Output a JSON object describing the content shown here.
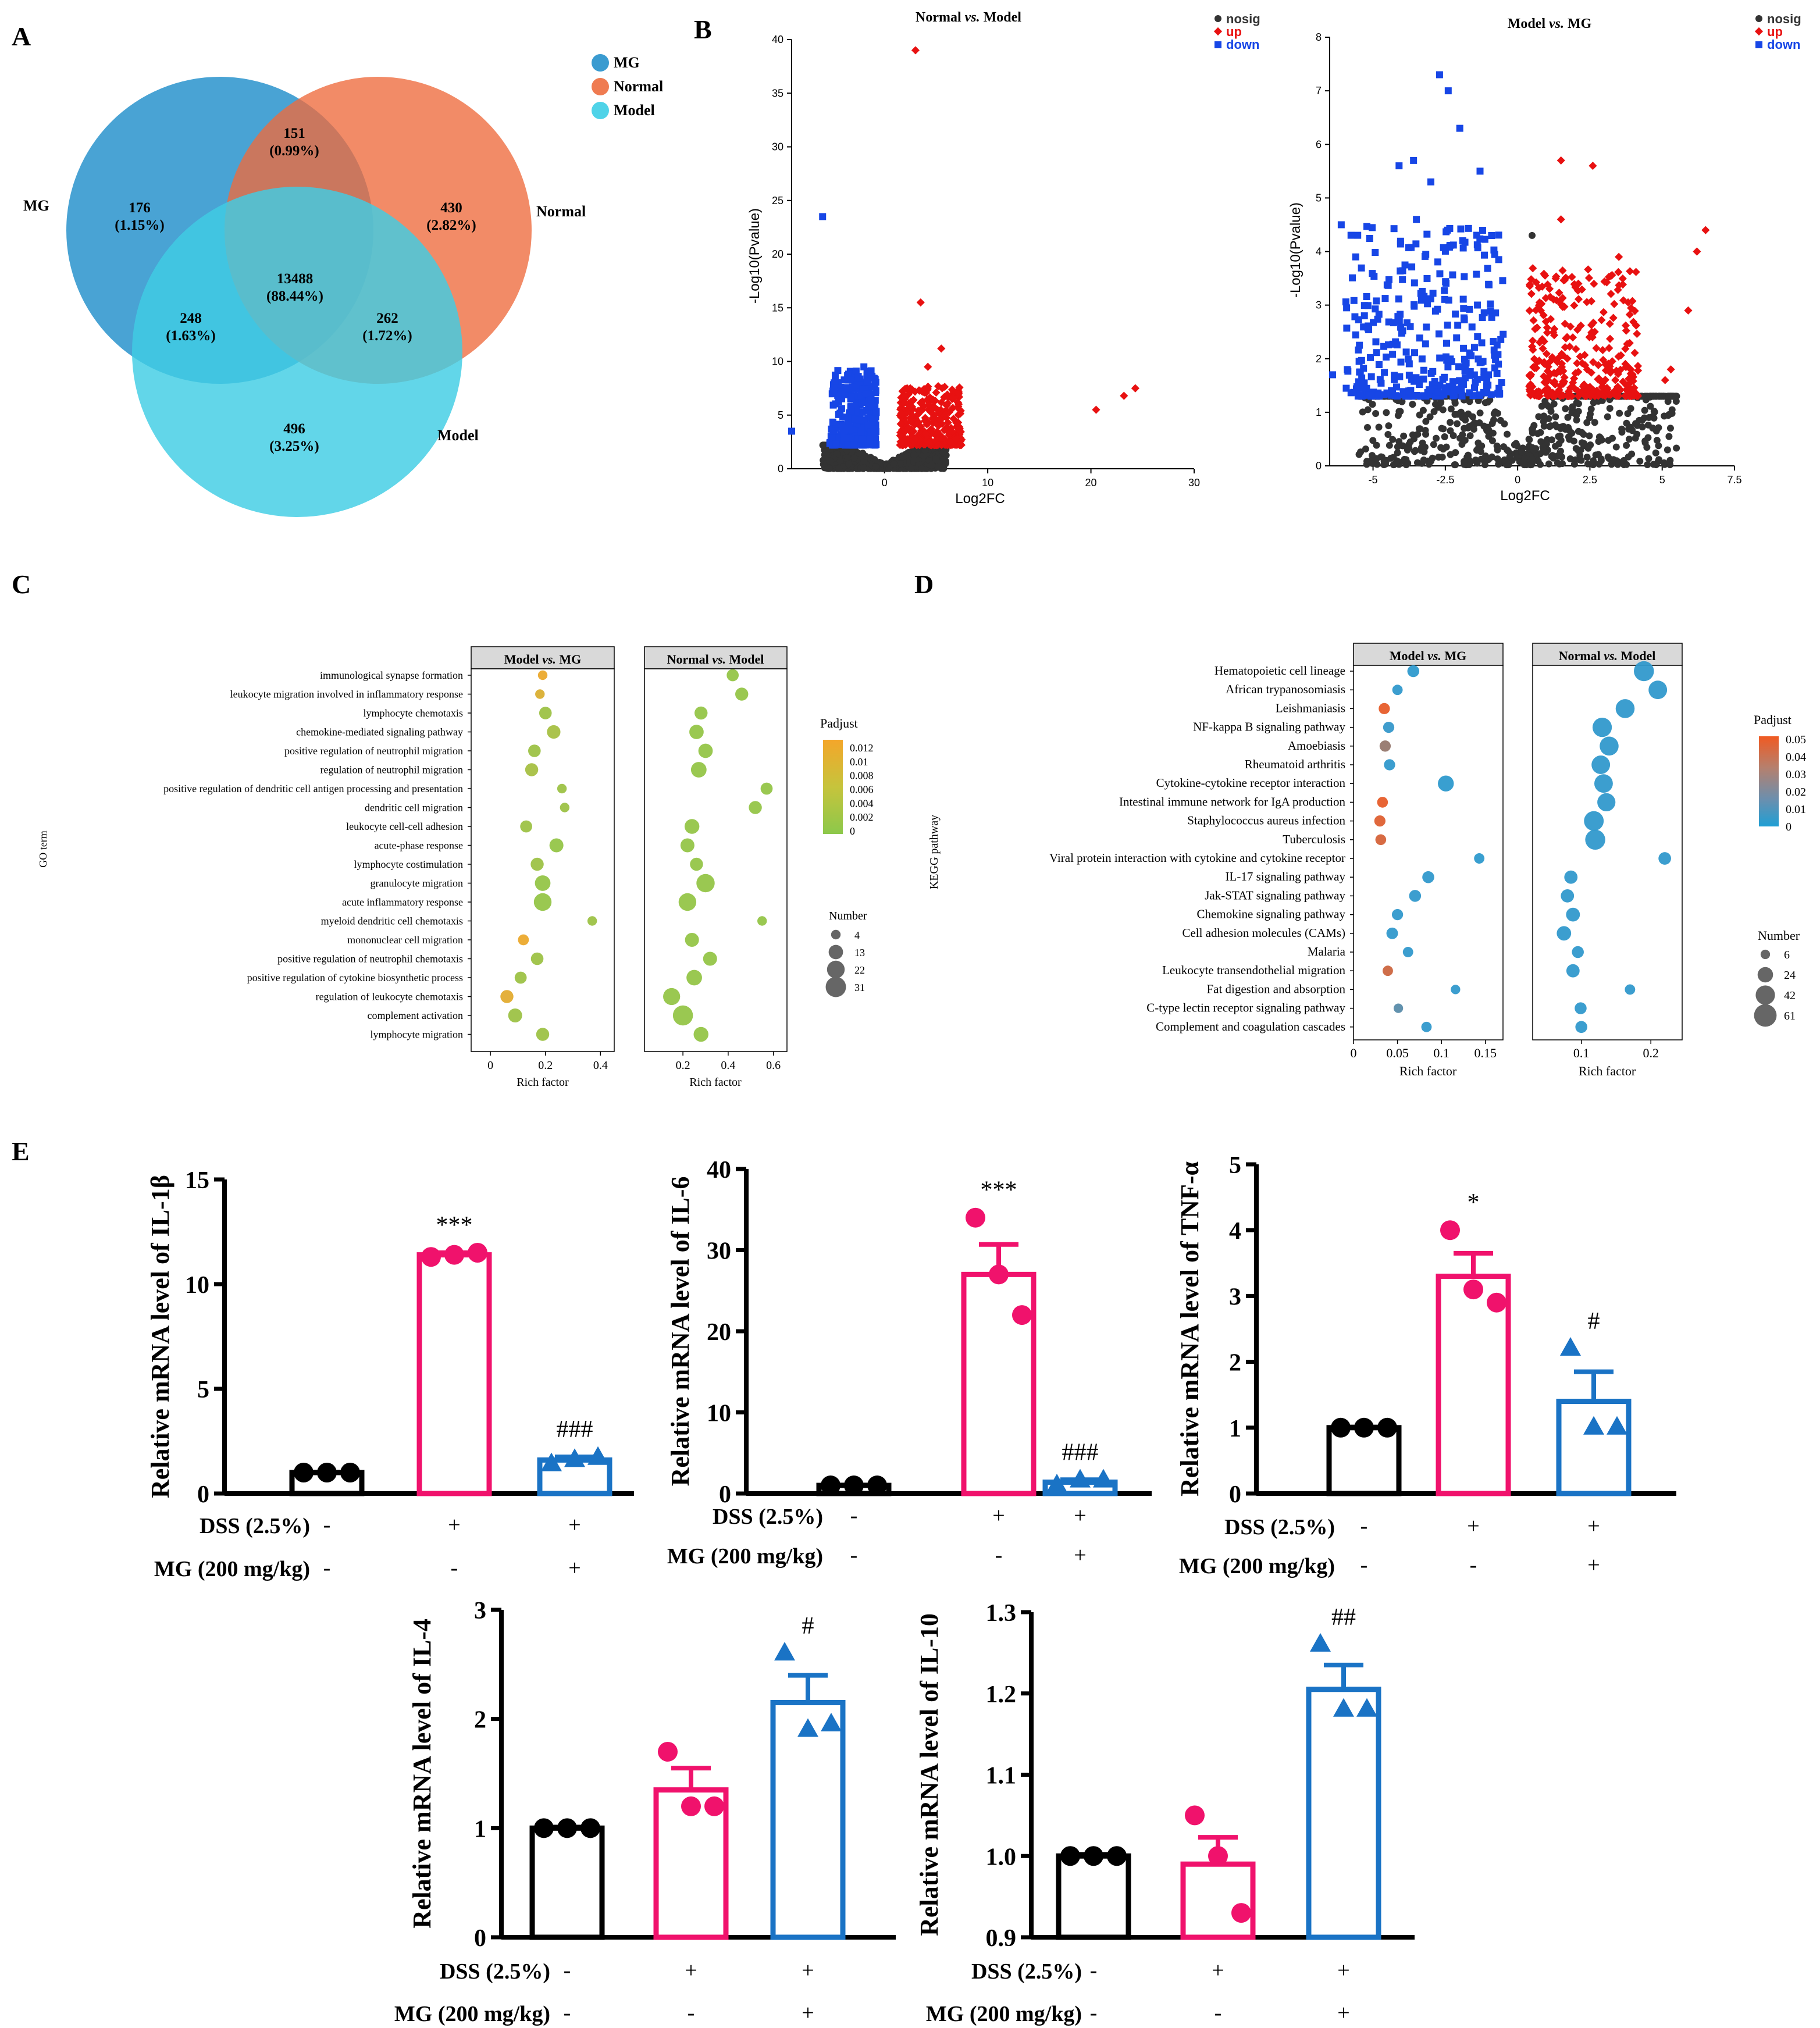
{
  "panels": {
    "A": "A",
    "B": "B",
    "C": "C",
    "D": "D",
    "E": "E"
  },
  "colors": {
    "mg": "#3a9bd0",
    "normal": "#ef7b51",
    "model": "#4fd3e8",
    "black": "#000000",
    "pink": "#f0126c",
    "blue": "#1a73c5",
    "nosig": "#333333",
    "up": "#e81111",
    "down": "#1746e6"
  },
  "chart_data": [
    {
      "id": "A",
      "type": "venn",
      "legend": [
        "MG",
        "Normal",
        "Model"
      ],
      "set_labels": {
        "mg": "MG",
        "normal": "Normal",
        "model": "Model"
      },
      "regions": [
        {
          "sets": [
            "MG"
          ],
          "count": "176",
          "pct": "(1.15%)"
        },
        {
          "sets": [
            "Normal"
          ],
          "count": "430",
          "pct": "(2.82%)"
        },
        {
          "sets": [
            "Model"
          ],
          "count": "496",
          "pct": "(3.25%)"
        },
        {
          "sets": [
            "MG",
            "Normal"
          ],
          "count": "151",
          "pct": "(0.99%)"
        },
        {
          "sets": [
            "MG",
            "Model"
          ],
          "count": "248",
          "pct": "(1.63%)"
        },
        {
          "sets": [
            "Normal",
            "Model"
          ],
          "count": "262",
          "pct": "(1.72%)"
        },
        {
          "sets": [
            "MG",
            "Normal",
            "Model"
          ],
          "count": "13488",
          "pct": "(88.44%)"
        }
      ]
    },
    {
      "id": "B1",
      "type": "scatter",
      "title": "Normal vs. Model",
      "title_a": "Normal ",
      "title_vs": "vs.",
      "title_b": " Model",
      "xlabel": "Log2FC",
      "ylabel": "-Log10(Pvalue)",
      "xlim": [
        -9,
        30
      ],
      "ylim": [
        0,
        40
      ],
      "xticks": [
        "0",
        "10",
        "20",
        "30"
      ],
      "yticks": [
        "0",
        "5",
        "10",
        "15",
        "20",
        "25",
        "30",
        "35",
        "40"
      ],
      "legend": [
        "nosig",
        "up",
        "down"
      ],
      "highlights": {
        "up": [
          [
            3,
            39
          ],
          [
            3.5,
            15.5
          ],
          [
            5.5,
            11.2
          ],
          [
            20.5,
            5.5
          ],
          [
            23.2,
            6.8
          ],
          [
            24.3,
            7.5
          ],
          [
            2.5,
            7.5
          ],
          [
            4.2,
            9.5
          ]
        ],
        "down": [
          [
            -6,
            23.5
          ],
          [
            -9,
            3.5
          ],
          [
            -2,
            9.5
          ],
          [
            -3.5,
            7.5
          ]
        ]
      }
    },
    {
      "id": "B2",
      "type": "scatter",
      "title": "Model vs. MG",
      "title_a": "Model ",
      "title_vs": "vs.",
      "title_b": " MG",
      "xlabel": "Log2FC",
      "ylabel": "-Log10(Pvalue)",
      "xlim": [
        -6.5,
        7.5
      ],
      "ylim": [
        0,
        8
      ],
      "xticks": [
        "-5",
        "-2.5",
        "0",
        "2.5",
        "5",
        "7.5"
      ],
      "yticks": [
        "0",
        "1",
        "2",
        "3",
        "4",
        "5",
        "6",
        "7",
        "8"
      ],
      "legend": [
        "nosig",
        "up",
        "down"
      ],
      "highlights": {
        "up": [
          [
            1.5,
            5.7
          ],
          [
            2.6,
            5.6
          ],
          [
            6.5,
            4.4
          ],
          [
            6.2,
            4.0
          ],
          [
            5.9,
            2.9
          ],
          [
            3.5,
            3.9
          ],
          [
            1.5,
            4.6
          ],
          [
            5.3,
            1.8
          ],
          [
            5.1,
            1.6
          ],
          [
            2.1,
            3.4
          ]
        ],
        "down": [
          [
            -2.7,
            7.3
          ],
          [
            -2.4,
            7.0
          ],
          [
            -2.0,
            6.3
          ],
          [
            -4.1,
            5.6
          ],
          [
            -3.6,
            5.7
          ],
          [
            -3.5,
            4.6
          ],
          [
            -1.3,
            5.5
          ],
          [
            -6.1,
            4.5
          ],
          [
            -5.6,
            3.9
          ],
          [
            -6.4,
            1.7
          ],
          [
            -3.0,
            5.3
          ]
        ],
        "nosig": [
          [
            0.5,
            4.3
          ],
          [
            -4.2,
            0.05
          ],
          [
            -3.8,
            0.05
          ],
          [
            -1.4,
            0.05
          ]
        ]
      }
    },
    {
      "id": "C",
      "type": "bubble",
      "ylabel": "GO term",
      "xlabel": "Rich factor",
      "facets": [
        {
          "title": "Model vs. MG",
          "title_a": "Model ",
          "title_vs": "vs.",
          "title_b": " MG",
          "xlim": [
            -0.07,
            0.45
          ],
          "xticks": [
            "0",
            "0.2",
            "0.4"
          ],
          "tickvals": [
            0,
            0.2,
            0.4
          ]
        },
        {
          "title": "Normal vs. Model",
          "title_a": "Normal ",
          "title_vs": "vs.",
          "title_b": " Model",
          "xlim": [
            0.03,
            0.66
          ],
          "xticks": [
            "0.2",
            "0.4",
            "0.6"
          ],
          "tickvals": [
            0.2,
            0.4,
            0.6
          ]
        }
      ],
      "terms": [
        "immunological synapse formation",
        "leukocyte migration involved in inflammatory response",
        "lymphocyte chemotaxis",
        "chemokine-mediated signaling pathway",
        "positive regulation of neutrophil migration",
        "regulation of neutrophil migration",
        "positive regulation of dendritic cell antigen processing and presentation",
        "dendritic cell migration",
        "leukocyte cell-cell adhesion",
        "acute-phase response",
        "lymphocyte costimulation",
        "granulocyte migration",
        "acute inflammatory response",
        "myeloid dendritic cell chemotaxis",
        "mononuclear cell migration",
        "positive regulation of neutrophil chemotaxis",
        "positive regulation of cytokine biosynthetic process",
        "regulation of leukocyte chemotaxis",
        "complement activation",
        "lymphocyte migration"
      ],
      "rich1": [
        0.19,
        0.18,
        0.2,
        0.23,
        0.16,
        0.15,
        0.26,
        0.27,
        0.13,
        0.24,
        0.17,
        0.19,
        0.19,
        0.37,
        0.12,
        0.17,
        0.11,
        0.06,
        0.09,
        0.19
      ],
      "n1": [
        4,
        4,
        9,
        11,
        9,
        10,
        4,
        4,
        8,
        12,
        10,
        16,
        22,
        4,
        6,
        9,
        8,
        10,
        12,
        10
      ],
      "p1": [
        0.011,
        0.009,
        0.002,
        0.003,
        0.002,
        0.003,
        0.002,
        0.002,
        0.002,
        0.001,
        0.002,
        0.001,
        0.001,
        0.002,
        0.011,
        0.002,
        0.002,
        0.01,
        0.002,
        0.002
      ],
      "rich2": [
        0.42,
        0.46,
        0.28,
        0.26,
        0.3,
        0.27,
        0.57,
        0.52,
        0.24,
        0.22,
        0.26,
        0.3,
        0.22,
        0.55,
        0.24,
        0.32,
        0.25,
        0.15,
        0.2,
        0.28
      ],
      "n2": [
        8,
        10,
        10,
        13,
        13,
        16,
        8,
        10,
        14,
        12,
        10,
        24,
        22,
        4,
        12,
        12,
        16,
        20,
        30,
        14
      ],
      "p2": [
        0.001,
        0.001,
        0.001,
        0.001,
        0.001,
        0.001,
        0.001,
        0.001,
        0.001,
        0.001,
        0.001,
        0.001,
        0.001,
        0.001,
        0.001,
        0.001,
        0.001,
        0.001,
        0.001,
        0.001
      ],
      "color_title": "Padjust",
      "color_ticks": [
        "0.012",
        "0.01",
        "0.008",
        "0.006",
        "0.004",
        "0.002",
        "0"
      ],
      "size_title": "Number",
      "size_values": [
        "4",
        "13",
        "22",
        "31"
      ]
    },
    {
      "id": "D",
      "type": "bubble",
      "ylabel": "KEGG pathway",
      "xlabel": "Rich factor",
      "facets": [
        {
          "title": "Model vs. MG",
          "title_a": "Model ",
          "title_vs": "vs.",
          "title_b": " MG",
          "xlim": [
            0,
            0.17
          ],
          "xticks": [
            "0",
            "0.05",
            "0.1",
            "0.15"
          ],
          "tickvals": [
            0,
            0.05,
            0.1,
            0.15
          ]
        },
        {
          "title": "Normal vs. Model",
          "title_a": "Normal ",
          "title_vs": "vs.",
          "title_b": " Model",
          "xlim": [
            0.03,
            0.245
          ],
          "xticks": [
            "0.1",
            "0.2"
          ],
          "tickvals": [
            0.1,
            0.2
          ]
        }
      ],
      "terms": [
        "Hematopoietic cell lineage",
        "African trypanosomiasis",
        "Leishmaniasis",
        "NF-kappa B signaling pathway",
        "Amoebiasis",
        "Rheumatoid arthritis",
        "Cytokine-cytokine receptor interaction",
        "Intestinal immune network for IgA production",
        "Staphylococcus aureus infection",
        "Tuberculosis",
        "Viral protein interaction with cytokine and cytokine receptor",
        "IL-17 signaling pathway",
        "Jak-STAT signaling pathway",
        "Chemokine signaling pathway",
        "Cell adhesion molecules (CAMs)",
        "Malaria",
        "Leukocyte transendothelial migration",
        "Fat digestion and absorption",
        "C-type lectin receptor signaling pathway",
        "Complement and coagulation cascades"
      ],
      "rich1": [
        0.068,
        0.05,
        0.035,
        0.04,
        0.036,
        0.041,
        0.105,
        0.033,
        0.03,
        0.031,
        0.143,
        0.085,
        0.07,
        0.05,
        0.044,
        0.062,
        0.039,
        0.116,
        0.051,
        0.083
      ],
      "n1": [
        12,
        8,
        10,
        10,
        10,
        10,
        26,
        9,
        10,
        9,
        8,
        12,
        12,
        10,
        11,
        8,
        8,
        6,
        6,
        8
      ],
      "p1": [
        0.008,
        0.01,
        0.048,
        0.012,
        0.03,
        0.01,
        0.008,
        0.048,
        0.046,
        0.044,
        0.008,
        0.01,
        0.01,
        0.01,
        0.01,
        0.01,
        0.042,
        0.01,
        0.02,
        0.01
      ],
      "rich2": [
        0.19,
        0.21,
        0.163,
        0.13,
        0.14,
        0.128,
        0.132,
        0.136,
        0.118,
        0.12,
        0.22,
        0.085,
        0.08,
        0.088,
        0.075,
        0.095,
        0.088,
        0.17,
        0.099,
        0.1
      ],
      "n2": [
        46,
        38,
        40,
        42,
        40,
        38,
        38,
        36,
        44,
        46,
        14,
        16,
        16,
        18,
        20,
        12,
        16,
        8,
        12,
        12
      ],
      "p2": [
        0.01,
        0.01,
        0.01,
        0.01,
        0.01,
        0.01,
        0.01,
        0.01,
        0.01,
        0.01,
        0.01,
        0.01,
        0.01,
        0.01,
        0.01,
        0.01,
        0.01,
        0.01,
        0.01,
        0.01
      ],
      "color_title": "Padjust",
      "color_ticks": [
        "0.05",
        "0.04",
        "0.03",
        "0.02",
        "0.01",
        "0"
      ],
      "size_title": "Number",
      "size_values": [
        "6",
        "24",
        "42",
        "61"
      ]
    },
    {
      "id": "E-IL1b",
      "type": "bar",
      "ylabel": "Relative mRNA level of IL-1β",
      "ylim": [
        0,
        15
      ],
      "yticks": [
        "0",
        "5",
        "10",
        "15"
      ],
      "means": [
        1.0,
        11.4,
        1.6
      ],
      "sem": [
        0.02,
        0.1,
        0.15
      ],
      "points": [
        [
          1.0,
          1.0,
          1.0
        ],
        [
          11.3,
          11.4,
          11.5
        ],
        [
          1.4,
          1.6,
          1.7
        ]
      ],
      "sig": [
        "",
        "***",
        "###"
      ],
      "row1_label": "DSS (2.5%)",
      "row1": [
        "-",
        "+",
        "+"
      ],
      "row2_label": "MG (200 mg/kg)",
      "row2": [
        "-",
        "-",
        "+"
      ]
    },
    {
      "id": "E-IL6",
      "type": "bar",
      "ylabel": "Relative mRNA level of IL-6",
      "ylim": [
        0,
        40
      ],
      "yticks": [
        "0",
        "10",
        "20",
        "30",
        "40"
      ],
      "means": [
        1.0,
        27.0,
        1.4
      ],
      "sem": [
        0.05,
        3.7,
        0.3
      ],
      "points": [
        [
          1.0,
          1.0,
          1.0
        ],
        [
          34.0,
          27.0,
          22.0
        ],
        [
          1.0,
          1.6,
          1.6
        ]
      ],
      "sig": [
        "",
        "***",
        "###"
      ],
      "row1_label": "DSS (2.5%)",
      "row1": [
        "-",
        "+",
        "+"
      ],
      "row2_label": "MG (200 mg/kg)",
      "row2": [
        "-",
        "-",
        "+"
      ]
    },
    {
      "id": "E-TNFa",
      "type": "bar",
      "ylabel": "Relative mRNA level of TNF-α",
      "ylim": [
        0,
        5
      ],
      "yticks": [
        "0",
        "1",
        "2",
        "3",
        "4",
        "5"
      ],
      "means": [
        1.0,
        3.3,
        1.4
      ],
      "sem": [
        0.01,
        0.35,
        0.45
      ],
      "points": [
        [
          1.0,
          1.0,
          1.0
        ],
        [
          4.0,
          3.1,
          2.9
        ],
        [
          2.2,
          1.0,
          1.0
        ]
      ],
      "sig": [
        "",
        "*",
        "#"
      ],
      "row1_label": "DSS (2.5%)",
      "row1": [
        "-",
        "+",
        "+"
      ],
      "row2_label": "MG (200 mg/kg)",
      "row2": [
        "-",
        "-",
        "+"
      ]
    },
    {
      "id": "E-IL4",
      "type": "bar",
      "ylabel": "Relative mRNA level of IL-4",
      "ylim": [
        0,
        3
      ],
      "yticks": [
        "0",
        "1",
        "2",
        "3"
      ],
      "means": [
        1.0,
        1.35,
        2.15
      ],
      "sem": [
        0.01,
        0.2,
        0.25
      ],
      "points": [
        [
          1.0,
          1.0,
          1.0
        ],
        [
          1.7,
          1.2,
          1.2
        ],
        [
          2.6,
          1.9,
          1.95
        ]
      ],
      "sig": [
        "",
        "",
        "#"
      ],
      "row1_label": "DSS (2.5%)",
      "row1": [
        "-",
        "+",
        "+"
      ],
      "row2_label": "MG (200 mg/kg)",
      "row2": [
        "-",
        "-",
        "+"
      ]
    },
    {
      "id": "E-IL10",
      "type": "bar",
      "ylabel": "Relative mRNA level of IL-10",
      "ylim": [
        0.9,
        1.3
      ],
      "yticks": [
        "0.9",
        "1.0",
        "1.1",
        "1.2",
        "1.3"
      ],
      "means": [
        1.0,
        0.99,
        1.205
      ],
      "sem": [
        0.002,
        0.033,
        0.03
      ],
      "points": [
        [
          1.0,
          1.0,
          1.0
        ],
        [
          1.05,
          1.0,
          0.93
        ],
        [
          1.26,
          1.18,
          1.18
        ]
      ],
      "sig": [
        "",
        "",
        "##"
      ],
      "row1_label": "DSS (2.5%)",
      "row1": [
        "-",
        "+",
        "+"
      ],
      "row2_label": "MG (200 mg/kg)",
      "row2": [
        "-",
        "-",
        "+"
      ]
    }
  ]
}
